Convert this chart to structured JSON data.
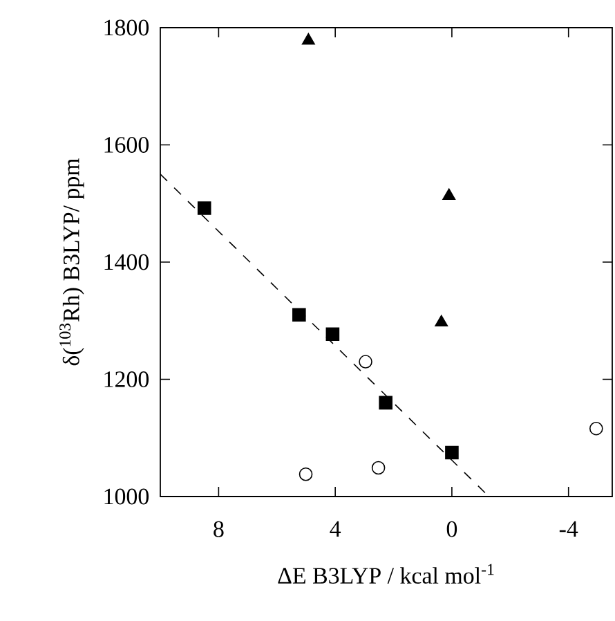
{
  "chart_data": {
    "type": "scatter",
    "xlabel": "ΔE B3LYP / kcal mol$^{-1}$",
    "ylabel": "δ($^{103}$Rh) B3LYP/ ppm",
    "xlim": [
      10,
      -5.5
    ],
    "ylim": [
      1000,
      1800
    ],
    "xticks": [
      8,
      4,
      0,
      -4
    ],
    "yticks": [
      1000,
      1200,
      1400,
      1600,
      1800
    ],
    "series": [
      {
        "color": "#000000",
        "marker": "square",
        "x": [
          8.49,
          5.24,
          4.09,
          2.27,
          0.0
        ],
        "values": [
          1492,
          1310,
          1277,
          1160,
          1075
        ]
      },
      {
        "color": "#000000",
        "marker": "triangle",
        "x": [
          4.92,
          0.1,
          0.36
        ],
        "values": [
          1778,
          1513,
          1297
        ]
      },
      {
        "color": "#000000",
        "marker": "circle",
        "x": [
          2.96,
          5.01,
          2.52,
          -4.95
        ],
        "values": [
          1230,
          1038,
          1049,
          1116
        ]
      },
      {
        "type": "line",
        "color": "#000000",
        "marker": "none",
        "line_style": "dashed",
        "x": [
          10,
          -1.27
        ],
        "values": [
          1550,
          1000
        ]
      }
    ]
  }
}
